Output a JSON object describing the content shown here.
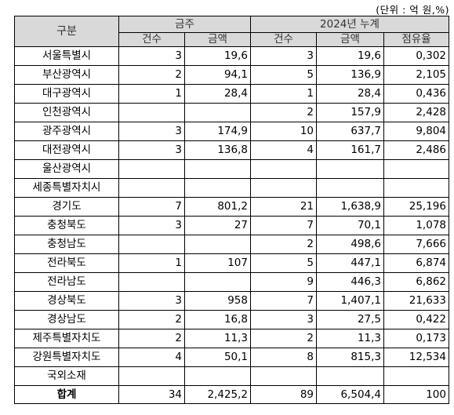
{
  "unit_note": "(단위 : 억 원,%)",
  "header": {
    "region": "구분",
    "group_weekly": "금주",
    "group_cumulative": "2024년 누계",
    "count": "건수",
    "amount": "금액",
    "share": "점유율"
  },
  "rows": [
    {
      "region": "서울특별시",
      "wk_count": "3",
      "wk_amount": "19,6",
      "cum_count": "3",
      "cum_amount": "19,6",
      "share": "0,302"
    },
    {
      "region": "부산광역시",
      "wk_count": "2",
      "wk_amount": "94,1",
      "cum_count": "5",
      "cum_amount": "136,9",
      "share": "2,105"
    },
    {
      "region": "대구광역시",
      "wk_count": "1",
      "wk_amount": "28,4",
      "cum_count": "1",
      "cum_amount": "28,4",
      "share": "0,436"
    },
    {
      "region": "인천광역시",
      "wk_count": "",
      "wk_amount": "",
      "cum_count": "2",
      "cum_amount": "157,9",
      "share": "2,428"
    },
    {
      "region": "광주광역시",
      "wk_count": "3",
      "wk_amount": "174,9",
      "cum_count": "10",
      "cum_amount": "637,7",
      "share": "9,804"
    },
    {
      "region": "대전광역시",
      "wk_count": "3",
      "wk_amount": "136,8",
      "cum_count": "4",
      "cum_amount": "161,7",
      "share": "2,486"
    },
    {
      "region": "울산광역시",
      "wk_count": "",
      "wk_amount": "",
      "cum_count": "",
      "cum_amount": "",
      "share": ""
    },
    {
      "region": "세종특별자치시",
      "wk_count": "",
      "wk_amount": "",
      "cum_count": "",
      "cum_amount": "",
      "share": ""
    },
    {
      "region": "경기도",
      "wk_count": "7",
      "wk_amount": "801,2",
      "cum_count": "21",
      "cum_amount": "1,638,9",
      "share": "25,196"
    },
    {
      "region": "충청북도",
      "wk_count": "3",
      "wk_amount": "27",
      "cum_count": "7",
      "cum_amount": "70,1",
      "share": "1,078"
    },
    {
      "region": "충청남도",
      "wk_count": "",
      "wk_amount": "",
      "cum_count": "2",
      "cum_amount": "498,6",
      "share": "7,666"
    },
    {
      "region": "전라북도",
      "wk_count": "1",
      "wk_amount": "107",
      "cum_count": "5",
      "cum_amount": "447,1",
      "share": "6,874"
    },
    {
      "region": "전라남도",
      "wk_count": "",
      "wk_amount": "",
      "cum_count": "9",
      "cum_amount": "446,3",
      "share": "6,862"
    },
    {
      "region": "경상북도",
      "wk_count": "3",
      "wk_amount": "958",
      "cum_count": "7",
      "cum_amount": "1,407,1",
      "share": "21,633"
    },
    {
      "region": "경상남도",
      "wk_count": "2",
      "wk_amount": "16,8",
      "cum_count": "3",
      "cum_amount": "27,5",
      "share": "0,422"
    },
    {
      "region": "제주특별자치도",
      "wk_count": "2",
      "wk_amount": "11,3",
      "cum_count": "2",
      "cum_amount": "11,3",
      "share": "0,173"
    },
    {
      "region": "강원특별자치도",
      "wk_count": "4",
      "wk_amount": "50,1",
      "cum_count": "8",
      "cum_amount": "815,3",
      "share": "12,534"
    },
    {
      "region": "국외소재",
      "wk_count": "",
      "wk_amount": "",
      "cum_count": "",
      "cum_amount": "",
      "share": ""
    }
  ],
  "total": {
    "region": "합계",
    "wk_count": "34",
    "wk_amount": "2,425,2",
    "cum_count": "89",
    "cum_amount": "6,504,4",
    "share": "100"
  }
}
